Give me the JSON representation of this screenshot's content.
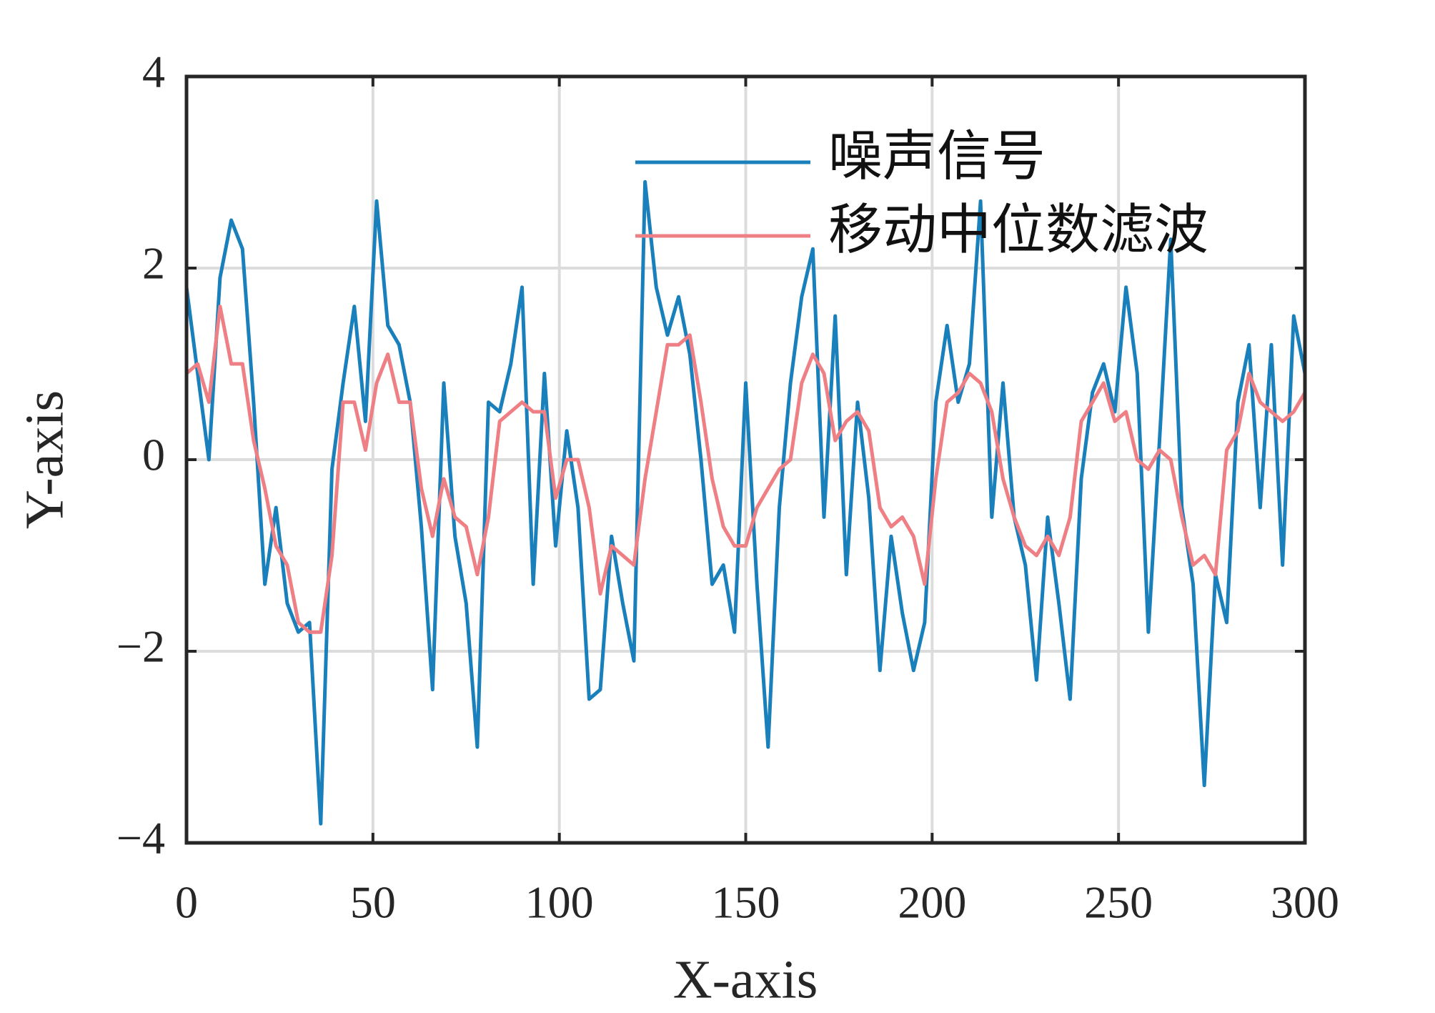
{
  "chart_data": {
    "type": "line",
    "x_label": "X-axis",
    "y_label": "Y-axis",
    "x": [
      0,
      3,
      6,
      9,
      12,
      15,
      18,
      21,
      24,
      27,
      30,
      33,
      36,
      39,
      42,
      45,
      48,
      51,
      54,
      57,
      60,
      63,
      66,
      69,
      72,
      75,
      78,
      81,
      84,
      87,
      90,
      93,
      96,
      99,
      102,
      105,
      108,
      111,
      114,
      117,
      120,
      123,
      126,
      129,
      132,
      135,
      138,
      141,
      144,
      147,
      150,
      153,
      156,
      159,
      162,
      165,
      168,
      171,
      174,
      177,
      180,
      183,
      186,
      189,
      192,
      195,
      198,
      201,
      204,
      207,
      210,
      213,
      216,
      219,
      222,
      225,
      228,
      231,
      234,
      237,
      240,
      243,
      246,
      249,
      252,
      255,
      258,
      261,
      264,
      267,
      270,
      273,
      276,
      279,
      282,
      285,
      288,
      291,
      294,
      297,
      300
    ],
    "series": [
      {
        "name": "噪声信号",
        "color": "#1a80bb",
        "values": [
          1.8,
          0.9,
          0.0,
          1.9,
          2.5,
          2.2,
          0.6,
          -1.3,
          -0.5,
          -1.5,
          -1.8,
          -1.7,
          -3.8,
          -0.1,
          0.8,
          1.6,
          0.4,
          2.7,
          1.4,
          1.2,
          0.6,
          -0.7,
          -2.4,
          0.8,
          -0.8,
          -1.5,
          -3.0,
          0.6,
          0.5,
          1.0,
          1.8,
          -1.3,
          0.9,
          -0.9,
          0.3,
          -0.5,
          -2.5,
          -2.4,
          -0.8,
          -1.5,
          -2.1,
          2.9,
          1.8,
          1.3,
          1.7,
          1.1,
          0.0,
          -1.3,
          -1.1,
          -1.8,
          0.8,
          -1.3,
          -3.0,
          -0.5,
          0.8,
          1.7,
          2.2,
          -0.6,
          1.5,
          -1.2,
          0.6,
          -0.4,
          -2.2,
          -0.8,
          -1.6,
          -2.2,
          -1.7,
          0.6,
          1.4,
          0.6,
          1.0,
          2.7,
          -0.6,
          0.8,
          -0.6,
          -1.1,
          -2.3,
          -0.6,
          -1.5,
          -2.5,
          -0.2,
          0.7,
          1.0,
          0.5,
          1.8,
          0.9,
          -1.8,
          0.2,
          2.3,
          -0.5,
          -1.3,
          -3.4,
          -1.2,
          -1.7,
          0.6,
          1.2,
          -0.5,
          1.2,
          -1.1,
          1.5,
          0.9
        ]
      },
      {
        "name": "移动中位数滤波",
        "color": "#ee7f84",
        "values": [
          0.9,
          1.0,
          0.6,
          1.6,
          1.0,
          1.0,
          0.2,
          -0.3,
          -0.9,
          -1.1,
          -1.7,
          -1.8,
          -1.8,
          -1.0,
          0.6,
          0.6,
          0.1,
          0.8,
          1.1,
          0.6,
          0.6,
          -0.3,
          -0.8,
          -0.2,
          -0.6,
          -0.7,
          -1.2,
          -0.6,
          0.4,
          0.5,
          0.6,
          0.5,
          0.5,
          -0.4,
          0.0,
          0.0,
          -0.5,
          -1.4,
          -0.9,
          -1.0,
          -1.1,
          -0.2,
          0.5,
          1.2,
          1.2,
          1.3,
          0.6,
          -0.2,
          -0.7,
          -0.9,
          -0.9,
          -0.5,
          -0.3,
          -0.1,
          0.0,
          0.8,
          1.1,
          0.9,
          0.2,
          0.4,
          0.5,
          0.3,
          -0.5,
          -0.7,
          -0.6,
          -0.8,
          -1.3,
          -0.2,
          0.6,
          0.7,
          0.9,
          0.8,
          0.5,
          -0.2,
          -0.6,
          -0.9,
          -1.0,
          -0.8,
          -1.0,
          -0.6,
          0.4,
          0.6,
          0.8,
          0.4,
          0.5,
          0.0,
          -0.1,
          0.1,
          0.0,
          -0.6,
          -1.1,
          -1.0,
          -1.2,
          0.1,
          0.3,
          0.9,
          0.6,
          0.5,
          0.4,
          0.5,
          0.7
        ]
      }
    ],
    "xlim": [
      0,
      300
    ],
    "xticks": [
      0,
      50,
      100,
      150,
      200,
      250,
      300
    ],
    "ylim": [
      -4,
      4
    ],
    "yticks": [
      {
        "value": -4,
        "label": "−4"
      },
      {
        "value": -2,
        "label": "−2"
      },
      0,
      2,
      4
    ],
    "grid": true,
    "legend": "upper right"
  }
}
